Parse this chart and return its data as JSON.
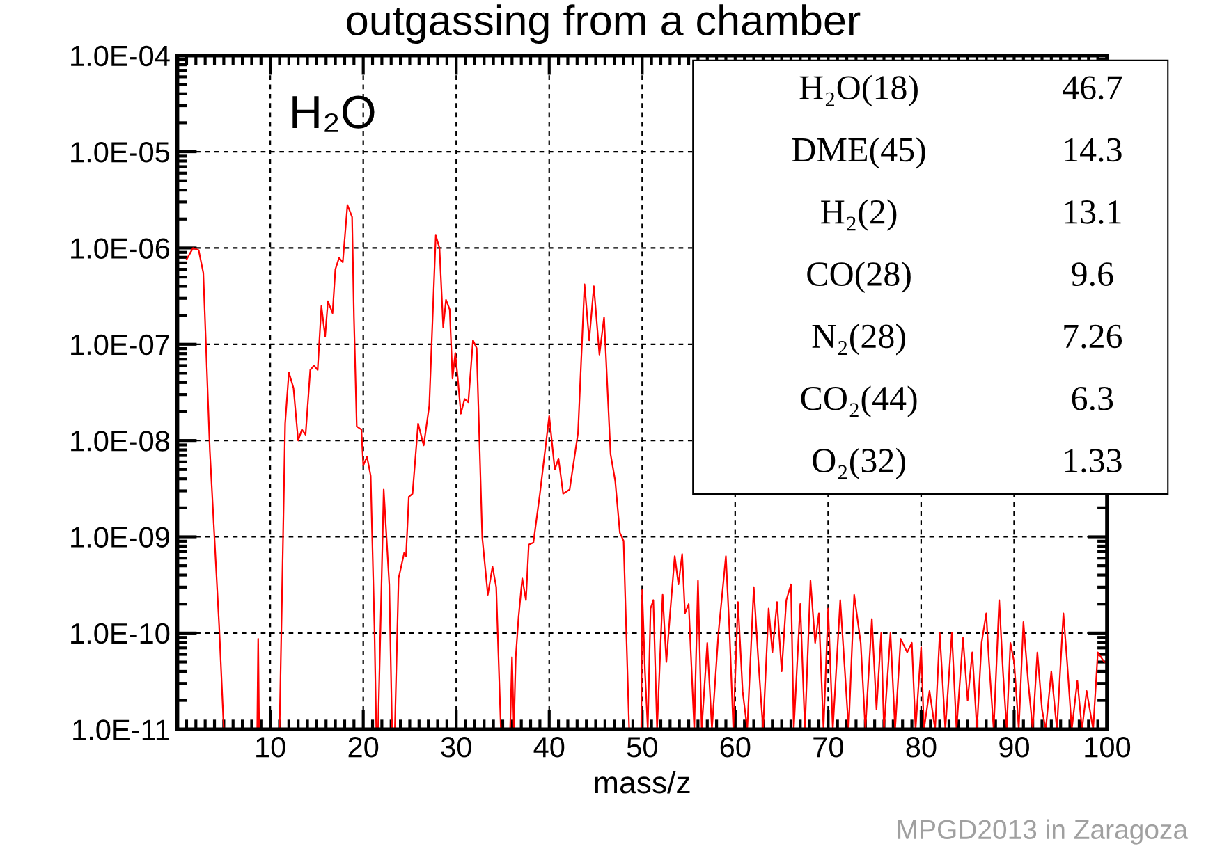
{
  "chart_data": {
    "type": "line",
    "title": "outgassing from a chamber",
    "xlabel": "mass/z",
    "log": "y",
    "xlim": [
      0,
      100
    ],
    "xticks": [
      10,
      20,
      30,
      40,
      50,
      60,
      70,
      80,
      90,
      100
    ],
    "ylim": [
      1e-11,
      0.0001
    ],
    "yticks": [
      {
        "value": 1e-11,
        "label": "1.0E-11"
      },
      {
        "value": 1e-10,
        "label": "1.0E-10"
      },
      {
        "value": 1e-09,
        "label": "1.0E-09"
      },
      {
        "value": 1e-08,
        "label": "1.0E-08"
      },
      {
        "value": 1e-07,
        "label": "1.0E-07"
      },
      {
        "value": 1e-06,
        "label": "1.0E-06"
      },
      {
        "value": 1e-05,
        "label": "1.0E-05"
      },
      {
        "value": 0.0001,
        "label": "1.0E-04"
      }
    ],
    "grid": true,
    "marker": "none",
    "line_style": "solid",
    "series": [
      {
        "color": "#ff0000",
        "x": [
          1.0,
          1.7,
          2.3,
          2.8,
          3.5,
          4.5,
          5.0,
          8.6,
          8.7,
          8.8,
          11.0,
          11.6,
          12.0,
          12.5,
          13.0,
          13.4,
          13.8,
          14.3,
          14.7,
          15.1,
          15.5,
          15.9,
          16.2,
          16.7,
          17.0,
          17.4,
          17.8,
          18.3,
          18.8,
          19.0,
          19.3,
          19.8,
          20.0,
          20.4,
          20.8,
          21.2,
          21.4,
          21.6,
          22.2,
          22.8,
          23.1,
          23.4,
          23.8,
          24.4,
          24.6,
          24.9,
          25.3,
          25.9,
          26.5,
          27.1,
          27.8,
          28.2,
          28.6,
          28.9,
          29.3,
          29.6,
          29.9,
          30.2,
          30.5,
          30.9,
          31.3,
          31.8,
          32.2,
          32.8,
          33.4,
          33.9,
          34.3,
          34.8,
          35.8,
          36.0,
          36.2,
          36.4,
          36.7,
          37.1,
          37.5,
          37.8,
          38.3,
          39.0,
          40.0,
          40.6,
          41.0,
          41.5,
          42.2,
          43.1,
          43.8,
          44.3,
          44.8,
          45.4,
          45.9,
          46.6,
          47.1,
          47.6,
          48.0,
          48.6,
          49.9,
          50.0,
          50.3,
          50.6,
          50.9,
          51.2,
          51.6,
          52.2,
          52.6,
          53.0,
          53.5,
          53.9,
          54.3,
          54.6,
          55.0,
          55.6,
          56.0,
          56.4,
          57.0,
          57.5,
          58.2,
          59.0,
          59.4,
          59.8,
          60.3,
          60.8,
          61.3,
          62.0,
          62.5,
          63.0,
          63.6,
          64.0,
          64.5,
          65.0,
          65.5,
          66.0,
          66.3,
          67.0,
          67.5,
          68.1,
          68.6,
          69.0,
          69.5,
          70.0,
          70.5,
          71.3,
          71.8,
          72.2,
          72.8,
          73.5,
          74.0,
          74.7,
          75.2,
          75.7,
          76.0,
          76.7,
          77.2,
          77.8,
          78.5,
          79.0,
          79.4,
          80.0,
          80.3,
          80.9,
          81.5,
          82.0,
          82.6,
          83.3,
          83.8,
          84.5,
          85.0,
          85.5,
          86.0,
          86.5,
          87.0,
          87.3,
          87.8,
          88.4,
          88.8,
          89.2,
          89.6,
          90.0,
          90.5,
          91.0,
          91.5,
          92.0,
          92.5,
          93.0,
          93.4,
          94.0,
          94.6,
          95.3,
          95.7,
          96.2,
          96.8,
          97.3,
          97.8,
          98.5,
          99.0,
          99.7,
          100
        ],
        "values": [
          7.6e-07,
          1e-06,
          9.5e-07,
          5.5e-07,
          7.9e-09,
          1.2e-10,
          1e-11,
          1e-11,
          8.7e-11,
          1e-11,
          1e-11,
          1.5e-08,
          5.1e-08,
          3.5e-08,
          1e-08,
          1.3e-08,
          1.15e-08,
          5.4e-08,
          6e-08,
          5.4e-08,
          2.5e-07,
          1.2e-07,
          2.8e-07,
          2.1e-07,
          6e-07,
          7.9e-07,
          7.1e-07,
          2.8e-06,
          2.1e-06,
          1.9e-07,
          1.4e-08,
          1.3e-08,
          5.5e-09,
          6.8e-09,
          4.3e-09,
          1.2e-10,
          1e-11,
          1e-11,
          3.1e-09,
          3.2e-10,
          1e-11,
          1e-11,
          3.7e-10,
          6.8e-10,
          6.3e-10,
          2.6e-09,
          2.8e-09,
          1.5e-08,
          8.9e-09,
          2.3e-08,
          1.35e-06,
          1e-06,
          1.5e-07,
          2.9e-07,
          2.3e-07,
          4.4e-08,
          8.1e-08,
          4.1e-08,
          1.9e-08,
          2.7e-08,
          2.5e-08,
          1.1e-07,
          9.1e-08,
          9.8e-10,
          2.5e-10,
          4.9e-10,
          3e-10,
          1e-11,
          1e-11,
          5.6e-11,
          1e-11,
          5.6e-11,
          1.45e-10,
          3.7e-10,
          2.2e-10,
          8.3e-10,
          8.7e-10,
          2.8e-09,
          1.8e-08,
          5e-09,
          6.5e-09,
          2.8e-09,
          3.1e-09,
          1.2e-08,
          4.2e-07,
          1.1e-07,
          4e-07,
          7.8e-08,
          1.9e-07,
          7.2e-09,
          3.8e-09,
          1.1e-09,
          9.1e-10,
          1e-11,
          1e-11,
          2.8e-10,
          4e-11,
          1e-11,
          1.8e-10,
          2.2e-10,
          1e-11,
          2.5e-10,
          5e-11,
          1.6e-10,
          6.3e-10,
          3.2e-10,
          6.6e-10,
          1.6e-10,
          2e-10,
          1e-11,
          3.5e-10,
          1e-11,
          7.9e-11,
          1e-11,
          1e-10,
          6.3e-10,
          1e-10,
          1e-11,
          2.1e-10,
          2.5e-11,
          1e-11,
          3e-10,
          5e-11,
          1e-11,
          1.8e-10,
          6.3e-11,
          2.1e-10,
          4e-11,
          2.2e-10,
          3.2e-10,
          1e-11,
          2e-10,
          1e-11,
          3.5e-10,
          7.9e-11,
          1.6e-10,
          1e-11,
          1.8e-10,
          1e-11,
          2.2e-10,
          4e-11,
          1e-11,
          2.5e-10,
          7.9e-11,
          1e-11,
          1.4e-10,
          1.6e-11,
          1e-10,
          1e-11,
          1e-10,
          1e-11,
          8.7e-11,
          6.3e-11,
          7.9e-11,
          1e-11,
          7.1e-11,
          1e-11,
          2.5e-11,
          1e-11,
          1e-10,
          1e-11,
          1e-10,
          1e-11,
          8.9e-11,
          2e-11,
          6.3e-11,
          1e-11,
          7.9e-11,
          1.6e-10,
          5e-11,
          1e-11,
          2.2e-10,
          4e-11,
          1e-11,
          7.9e-11,
          5e-11,
          1e-11,
          1.3e-10,
          3.2e-11,
          1e-11,
          6.3e-11,
          1.6e-11,
          1e-11,
          4e-11,
          1e-11,
          1.6e-10,
          5e-11,
          1e-11,
          3.2e-11,
          1e-11,
          2.5e-11,
          1e-11,
          6.3e-11,
          5e-11,
          5e-11
        ]
      }
    ],
    "annotations": [
      "H₂O",
      "H₂O(18)",
      "46.7",
      "DME(45)",
      "14.3",
      "H₂(2)",
      "13.1",
      "CO(28)",
      "9.6",
      "N₂(28)",
      "7.26",
      "CO₂(44)",
      "6.3",
      "O₂(32)",
      "1.33",
      "MPGD2013 in Zaragoza"
    ]
  }
}
